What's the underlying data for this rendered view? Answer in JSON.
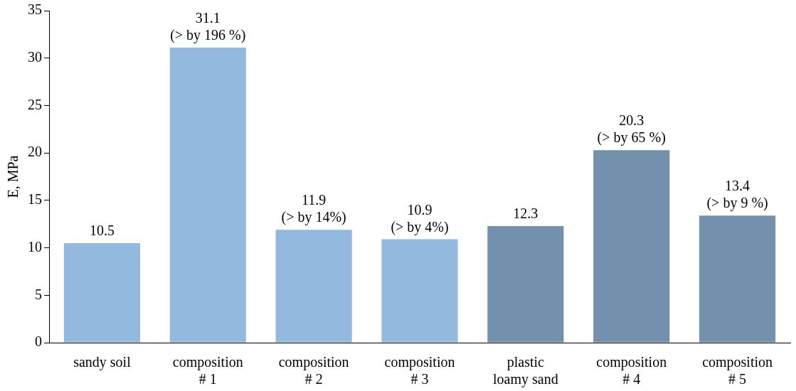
{
  "chart_data": {
    "type": "bar",
    "ylabel": "E, MPa",
    "categories": [
      "sandy soil",
      "composition\n# 1",
      "composition\n# 2",
      "composition\n# 3",
      "plastic\nloamy sand",
      "composition\n# 4",
      "composition\n# 5"
    ],
    "values": [
      10.5,
      31.1,
      11.9,
      10.9,
      12.3,
      20.3,
      13.4
    ],
    "colors": [
      "#93b9de",
      "#93b9de",
      "#93b9de",
      "#93b9de",
      "#7390ad",
      "#7390ad",
      "#7390ad"
    ],
    "value_labels": [
      "10.5",
      "31.1\n(> by 196 %)",
      "11.9\n(> by 14%)",
      "10.9\n(> by 4%)",
      "12.3",
      "20.3\n(> by 65 %)",
      "13.4\n(> by 9 %)"
    ],
    "ylim": [
      0,
      35
    ],
    "yticks": [
      0,
      5,
      10,
      15,
      20,
      25,
      30,
      35
    ],
    "grid": false,
    "legend": false
  }
}
